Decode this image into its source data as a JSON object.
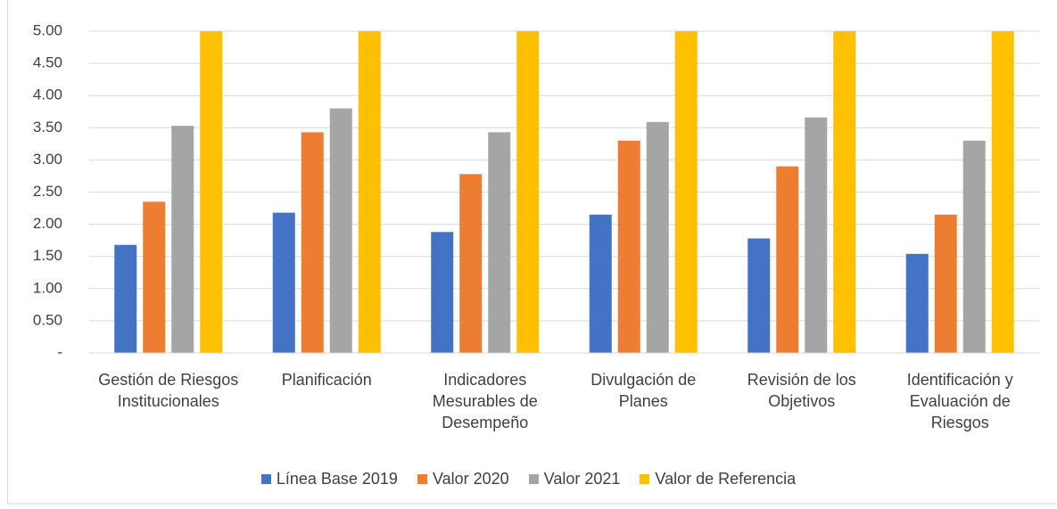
{
  "chart_data": {
    "type": "bar",
    "categories": [
      "Gestión de Riesgos Institucionales",
      "Planificación",
      "Indicadores Mesurables de Desempeño",
      "Divulgación de Planes",
      "Revisión de los Objetivos",
      "Identificación y Evaluación de Riesgos"
    ],
    "series": [
      {
        "name": "Línea Base 2019",
        "color": "#4472c4",
        "values": [
          1.68,
          2.18,
          1.88,
          2.15,
          1.78,
          1.54
        ]
      },
      {
        "name": "Valor 2020",
        "color": "#ed7d31",
        "values": [
          2.35,
          3.43,
          2.78,
          3.3,
          2.9,
          2.15
        ]
      },
      {
        "name": "Valor 2021",
        "color": "#a5a5a5",
        "values": [
          3.53,
          3.8,
          3.43,
          3.59,
          3.66,
          3.3
        ]
      },
      {
        "name": "Valor de Referencia",
        "color": "#ffc000",
        "values": [
          5,
          5,
          5,
          5,
          5,
          5
        ]
      }
    ],
    "ylim": [
      0,
      5
    ],
    "yticks": [
      {
        "value": 0,
        "label": "-"
      },
      {
        "value": 0.5,
        "label": "0.50"
      },
      {
        "value": 1,
        "label": "1.00"
      },
      {
        "value": 1.5,
        "label": "1.50"
      },
      {
        "value": 2,
        "label": "2.00"
      },
      {
        "value": 2.5,
        "label": "2.50"
      },
      {
        "value": 3,
        "label": "3.00"
      },
      {
        "value": 3.5,
        "label": "3.50"
      },
      {
        "value": 4,
        "label": "4.00"
      },
      {
        "value": 4.5,
        "label": "4.50"
      },
      {
        "value": 5,
        "label": "5.00"
      }
    ],
    "grid": true,
    "legend": "bottom"
  }
}
